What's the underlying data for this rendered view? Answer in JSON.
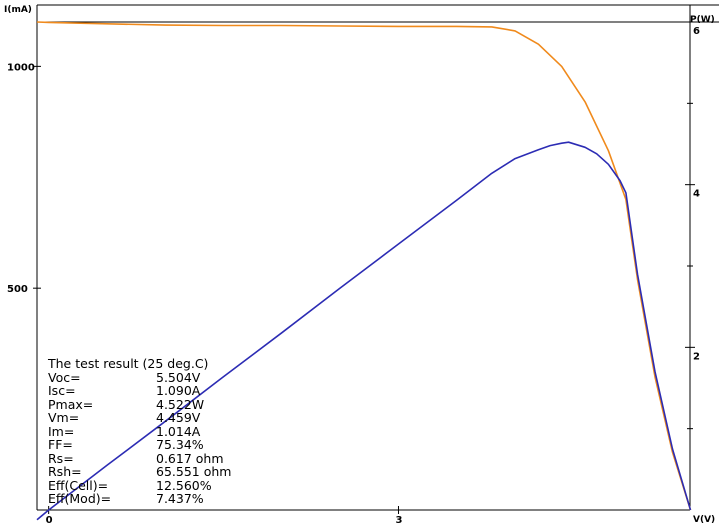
{
  "chart_data": {
    "type": "line",
    "title": "",
    "xlabel": "V(V)",
    "ylabel": "I(mA)",
    "y2label": "P(W)",
    "xlim": [
      -0.1,
      5.5
    ],
    "ylim": [
      0,
      1100
    ],
    "y2lim": [
      0,
      6
    ],
    "x_ticks": [
      0,
      3
    ],
    "y_ticks": [
      500,
      1000
    ],
    "y2_ticks": [
      2,
      4,
      6
    ],
    "y2_minor_ticks": [
      1,
      3,
      5
    ],
    "grid": false,
    "series": [
      {
        "axis": "left",
        "color": "#f08a1c",
        "x": [
          -0.1,
          0,
          0.5,
          1.0,
          1.5,
          2.0,
          2.5,
          3.0,
          3.5,
          3.8,
          4.0,
          4.2,
          4.4,
          4.6,
          4.8,
          4.95,
          5.05,
          5.2,
          5.35,
          5.504
        ],
        "y": [
          1100,
          1099,
          1096,
          1093,
          1092,
          1092,
          1091,
          1090,
          1090,
          1089,
          1080,
          1050,
          1000,
          920,
          810,
          700,
          520,
          300,
          130,
          0
        ]
      },
      {
        "axis": "right",
        "color": "#2c2cb4",
        "x": [
          -0.1,
          0,
          0.5,
          1.0,
          1.5,
          2.0,
          2.5,
          3.0,
          3.5,
          3.8,
          4.0,
          4.2,
          4.3,
          4.4,
          4.459,
          4.6,
          4.7,
          4.8,
          4.9,
          4.95,
          5.05,
          5.2,
          5.35,
          5.504
        ],
        "y": [
          -0.12,
          0.0,
          0.55,
          1.09,
          1.64,
          2.18,
          2.73,
          3.27,
          3.81,
          4.14,
          4.32,
          4.43,
          4.48,
          4.51,
          4.522,
          4.46,
          4.38,
          4.25,
          4.05,
          3.9,
          2.9,
          1.7,
          0.75,
          0.0
        ]
      }
    ]
  },
  "result": {
    "title": "The test result (25 deg.C)",
    "rows": [
      {
        "k": "Voc=",
        "v": "5.504V"
      },
      {
        "k": "Isc=",
        "v": "1.090A"
      },
      {
        "k": "Pmax=",
        "v": "4.522W"
      },
      {
        "k": "Vm=",
        "v": "4.459V"
      },
      {
        "k": "Im=",
        "v": "1.014A"
      },
      {
        "k": "FF=",
        "v": "75.34%"
      },
      {
        "k": "Rs=",
        "v": "0.617 ohm"
      },
      {
        "k": "Rsh=",
        "v": "65.551 ohm"
      },
      {
        "k": "Eff(Cell)=",
        "v": "12.560%"
      },
      {
        "k": "Eff(Mod)=",
        "v": "7.437%"
      }
    ]
  }
}
